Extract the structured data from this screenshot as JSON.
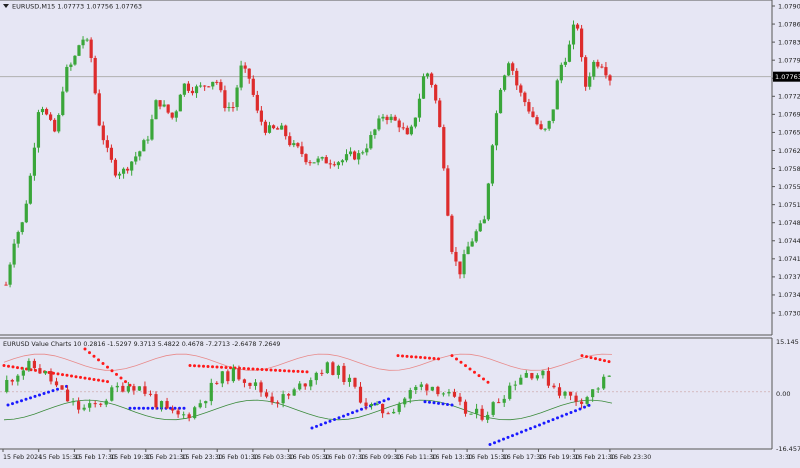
{
  "colors": {
    "background": "#e6e6f4",
    "bull": "#3aa63a",
    "bear": "#dd2c2c",
    "wick": "#3a3a3a",
    "axis_text": "#222222",
    "frame": "#555555",
    "current_price_line": "#b0b0b0",
    "dot_red": "#ff1a1a",
    "dot_blue": "#1a1aff",
    "band_upper": "#e88a8a",
    "band_lower": "#3a8a3a"
  },
  "main": {
    "title_text": "EURUSD,M15  1.07773 1.07756 1.07763",
    "current_price_label": "1.07763"
  },
  "indicator": {
    "title_text": "EURUSD Value Charts 10 0.2816 -1.5297 9.3713 5.4822 0.4678 -7.2713 -2.6478 7.2649"
  },
  "chart_data": [
    {
      "type": "candlestick",
      "title": "EURUSD,M15",
      "ohlc_header": [
        "1.07773",
        "1.07756",
        "1.07763"
      ],
      "current_price": 1.07763,
      "ylim": [
        1.07305,
        1.079
      ],
      "y_ticks": [
        "1.07900",
        "1.07865",
        "1.07830",
        "1.07795",
        "1.07760",
        "1.07725",
        "1.07690",
        "1.07655",
        "1.07620",
        "1.07585",
        "1.07550",
        "1.07515",
        "1.07480",
        "1.07445",
        "1.07410",
        "1.07375",
        "1.07340",
        "1.07305"
      ],
      "x_tick_labels": [
        "15 Feb 2024",
        "15 Feb 15:30",
        "15 Feb 17:30",
        "15 Feb 19:30",
        "15 Feb 21:30",
        "15 Feb 23:30",
        "16 Feb 01:30",
        "16 Feb 03:30",
        "16 Feb 05:30",
        "16 Feb 07:30",
        "16 Feb 09:30",
        "16 Feb 11:30",
        "16 Feb 13:30",
        "16 Feb 15:30",
        "16 Feb 17:30",
        "16 Feb 19:30",
        "16 Feb 21:30",
        "16 Feb 23:30"
      ],
      "close_path": [
        1.0736,
        1.0745,
        1.0748,
        1.0758,
        1.0772,
        1.0768,
        1.0765,
        1.0777,
        1.0779,
        1.0784,
        1.0782,
        1.0768,
        1.0762,
        1.0758,
        1.0758,
        1.076,
        1.0762,
        1.0765,
        1.0772,
        1.077,
        1.0768,
        1.0775,
        1.0774,
        1.0774,
        1.0775,
        1.0776,
        1.0771,
        1.077,
        1.0778,
        1.0776,
        1.0769,
        1.0766,
        1.0766,
        1.0766,
        1.0763,
        1.0762,
        1.076,
        1.076,
        1.076,
        1.076,
        1.076,
        1.0761,
        1.0761,
        1.0763,
        1.0766,
        1.0769,
        1.0768,
        1.0767,
        1.0764,
        1.077,
        1.0778,
        1.0774,
        1.0763,
        1.0744,
        1.0738,
        1.0743,
        1.0746,
        1.0748,
        1.0764,
        1.0775,
        1.078,
        1.0774,
        1.0771,
        1.0768,
        1.0765,
        1.0768,
        1.0778,
        1.0781,
        1.0788,
        1.0774,
        1.0779,
        1.0779,
        1.0776
      ]
    },
    {
      "type": "line",
      "title": "EURUSD Value Charts 10",
      "values_header": [
        0.2816,
        -1.5297,
        9.3713,
        5.4822,
        0.4678,
        -7.2713,
        -2.6478,
        7.2649
      ],
      "ylim": [
        -16.4576,
        15.145
      ],
      "y_ticks": [
        "15.145",
        "0.00",
        "-16.4576"
      ],
      "series_note": "value-chart candles with red/blue dotted extremes and upper/lower bands"
    }
  ]
}
